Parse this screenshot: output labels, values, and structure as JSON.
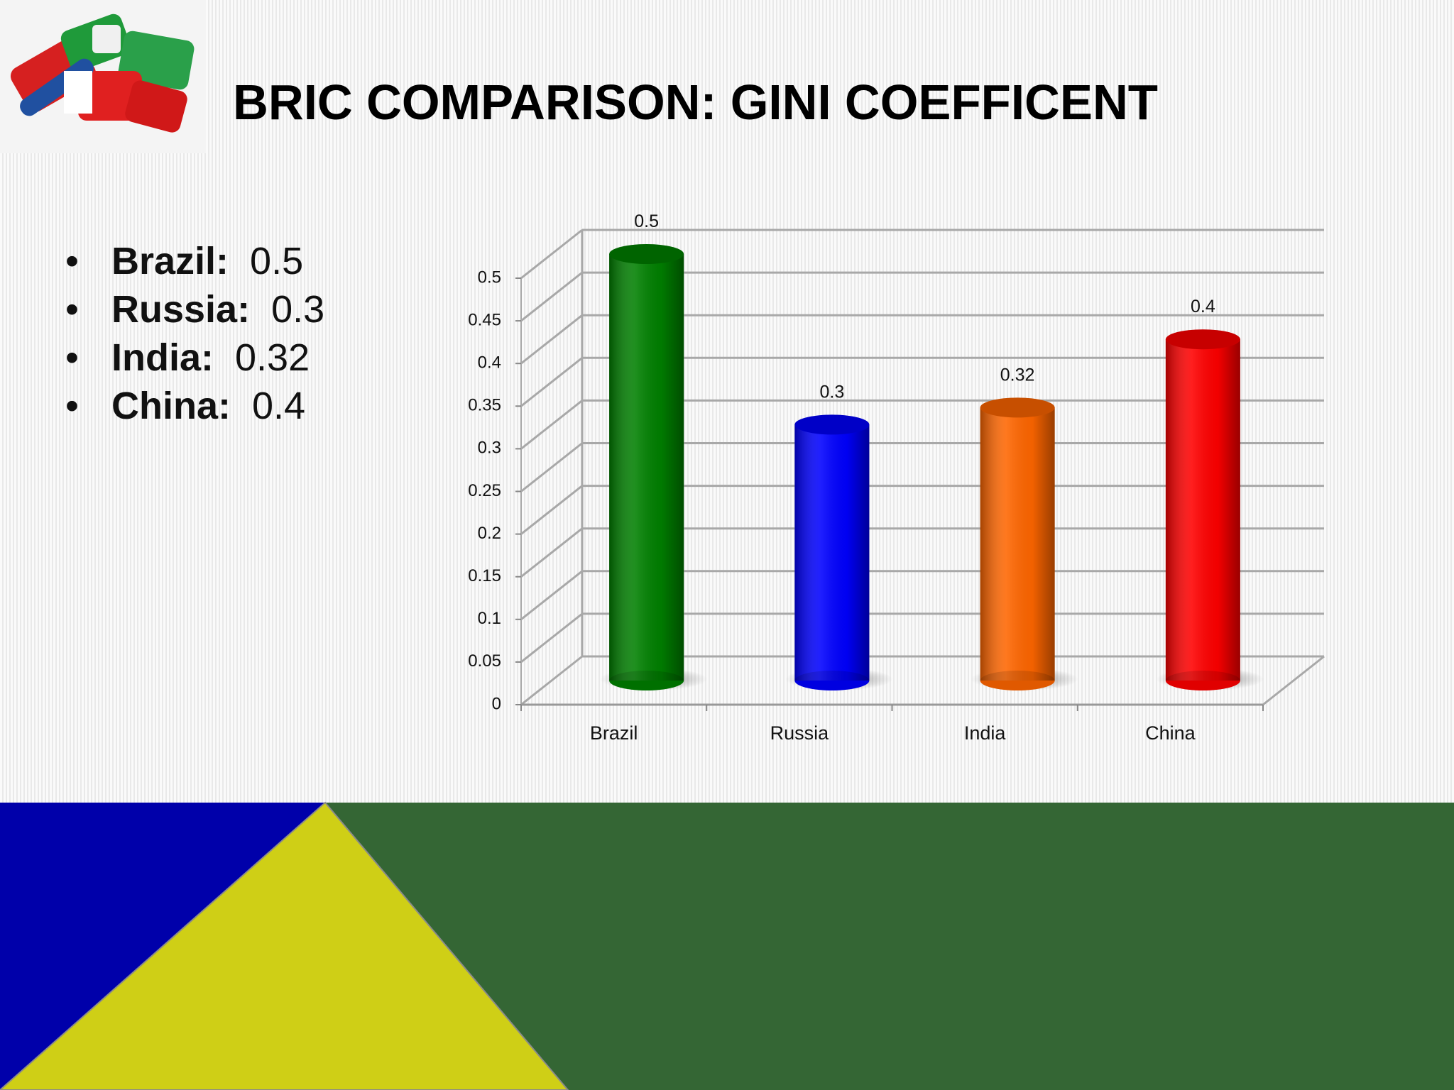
{
  "title": "BRIC COMPARISON: GINI  COEFFICENT",
  "bullets": [
    {
      "label": "Brazil:",
      "value": 0.5
    },
    {
      "label": "Russia:",
      "value": 0.3
    },
    {
      "label": "India:",
      "value": 0.32
    },
    {
      "label": "China:",
      "value": 0.4
    }
  ],
  "chart_data": {
    "type": "bar",
    "categories": [
      "Brazil",
      "Russia",
      "India",
      "China"
    ],
    "values": [
      0.5,
      0.3,
      0.32,
      0.4
    ],
    "colors": [
      "#008000",
      "#0000ff",
      "#ff6600",
      "#ff0000"
    ],
    "ylim": [
      0,
      0.5
    ],
    "yticks": [
      0,
      0.05,
      0.1,
      0.15,
      0.2,
      0.25,
      0.3,
      0.35,
      0.4,
      0.45,
      0.5
    ],
    "grid": true
  }
}
